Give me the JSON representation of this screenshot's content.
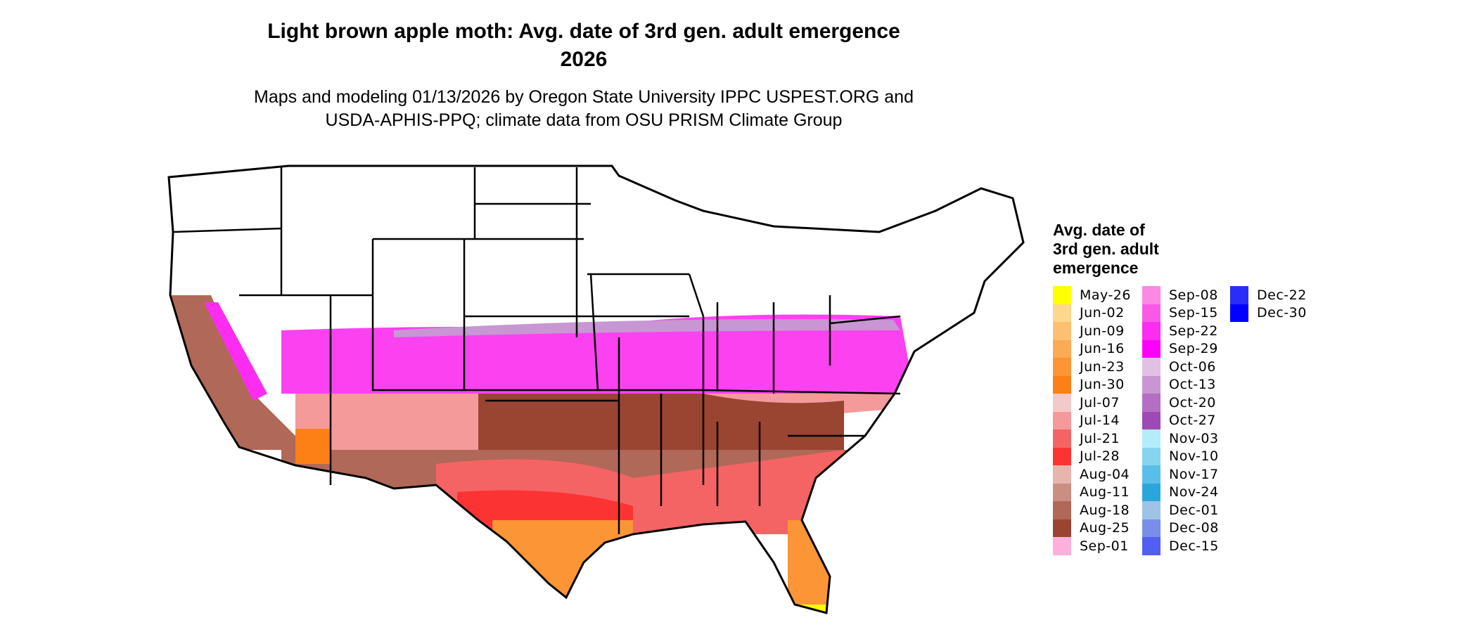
{
  "title": {
    "line1": "Light brown apple moth: Avg. date of 3rd gen. adult emergence",
    "line2": "2026"
  },
  "subtitle": {
    "line1": "Maps and modeling 01/13/2026 by Oregon State University IPPC USPEST.ORG and",
    "line2": "USDA-APHIS-PPQ; climate data from OSU PRISM Climate Group"
  },
  "legend": {
    "title": [
      "Avg. date of",
      "3rd gen. adult",
      "emergence"
    ],
    "items": [
      {
        "label": "May-26",
        "color": "#FFFF00"
      },
      {
        "label": "Jun-02",
        "color": "#FDD78E"
      },
      {
        "label": "Jun-09",
        "color": "#FDC072"
      },
      {
        "label": "Jun-16",
        "color": "#FBAA55"
      },
      {
        "label": "Jun-23",
        "color": "#FB9535"
      },
      {
        "label": "Jun-30",
        "color": "#FD8016"
      },
      {
        "label": "Jul-07",
        "color": "#F3CACA"
      },
      {
        "label": "Jul-14",
        "color": "#F49A9A"
      },
      {
        "label": "Jul-21",
        "color": "#F56464"
      },
      {
        "label": "Jul-28",
        "color": "#FC3333"
      },
      {
        "label": "Aug-04",
        "color": "#E6B5AE"
      },
      {
        "label": "Aug-11",
        "color": "#CA8E82"
      },
      {
        "label": "Aug-18",
        "color": "#B06858"
      },
      {
        "label": "Aug-25",
        "color": "#9A4432"
      },
      {
        "label": "Sep-01",
        "color": "#FDB0DC"
      },
      {
        "label": "Sep-08",
        "color": "#FC88E4"
      },
      {
        "label": "Sep-15",
        "color": "#FC58E8"
      },
      {
        "label": "Sep-22",
        "color": "#FC2CF0"
      },
      {
        "label": "Sep-29",
        "color": "#FC00FC"
      },
      {
        "label": "Oct-06",
        "color": "#E2C0E6"
      },
      {
        "label": "Oct-13",
        "color": "#C896D2"
      },
      {
        "label": "Oct-20",
        "color": "#B46EC4"
      },
      {
        "label": "Oct-27",
        "color": "#9E4AB6"
      },
      {
        "label": "Nov-03",
        "color": "#B4ECFC"
      },
      {
        "label": "Nov-10",
        "color": "#86D4F0"
      },
      {
        "label": "Nov-17",
        "color": "#5ABEE8"
      },
      {
        "label": "Nov-24",
        "color": "#2AA6DC"
      },
      {
        "label": "Dec-01",
        "color": "#A0C2E6"
      },
      {
        "label": "Dec-08",
        "color": "#788EEA"
      },
      {
        "label": "Dec-15",
        "color": "#525EF4"
      },
      {
        "label": "Dec-22",
        "color": "#2A2CF8"
      },
      {
        "label": "Dec-30",
        "color": "#0000FC"
      }
    ]
  }
}
